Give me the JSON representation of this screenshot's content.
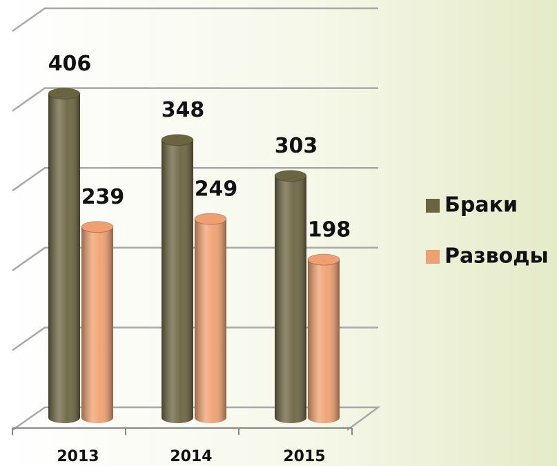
{
  "chart_data": {
    "type": "bar3d",
    "categories": [
      "2013",
      "2014",
      "2015"
    ],
    "series": [
      {
        "name": "Браки",
        "color": "#6b6440",
        "values": [
          406,
          348,
          303
        ]
      },
      {
        "name": "Разводы",
        "color": "#f0a070",
        "values": [
          239,
          249,
          198
        ]
      }
    ],
    "ylim": [
      0,
      500
    ],
    "yticks": [
      0,
      100,
      200,
      300,
      400,
      500
    ],
    "grid": true,
    "legend": "right"
  }
}
